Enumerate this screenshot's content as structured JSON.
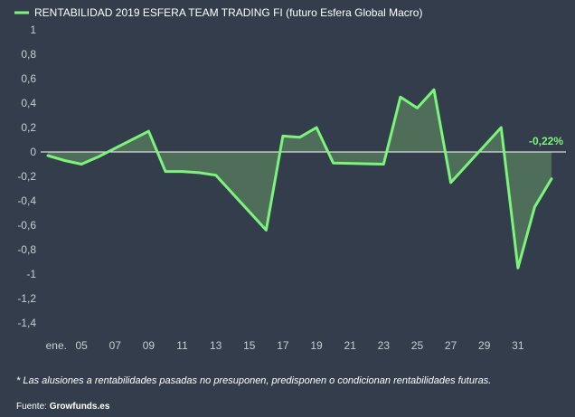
{
  "colors": {
    "background": "#333d4b",
    "line": "#7cf47c",
    "area": "#4e6e5a",
    "zero_line": "#ffffff",
    "tick_text": "#c9cdd3"
  },
  "chart_data": {
    "type": "area",
    "legend": "RENTABILIDAD 2019 ESFERA TEAM TRADING FI (futuro Esfera Global Macro)",
    "legend_position": "top-left",
    "x_tick_labels": [
      "ene.",
      "05",
      "07",
      "09",
      "11",
      "13",
      "15",
      "17",
      "19",
      "21",
      "23",
      "25",
      "27",
      "29",
      "31"
    ],
    "x": [
      "01",
      "02",
      "03",
      "04",
      "07",
      "08",
      "09",
      "10",
      "11",
      "14",
      "15",
      "16",
      "17",
      "18",
      "21",
      "22",
      "23",
      "24",
      "25",
      "28",
      "29",
      "30",
      "31"
    ],
    "x_day": [
      1,
      2,
      3,
      4,
      7,
      8,
      9,
      10,
      11,
      14,
      15,
      16,
      17,
      18,
      21,
      22,
      23,
      24,
      25,
      28,
      29,
      30,
      31
    ],
    "values": [
      -0.03,
      -0.07,
      -0.1,
      -0.04,
      0.17,
      -0.16,
      -0.16,
      -0.17,
      -0.19,
      -0.64,
      0.13,
      0.12,
      0.2,
      -0.09,
      -0.1,
      0.45,
      0.36,
      0.51,
      -0.25,
      0.2,
      -0.95,
      -0.45,
      -0.22
    ],
    "last_value_label": "-0,22%",
    "y_ticks": [
      "1",
      "0,8",
      "0,6",
      "0,4",
      "0,2",
      "0",
      "-0,2",
      "-0,4",
      "-0,6",
      "-0,8",
      "-1",
      "-1,2",
      "-1,4"
    ],
    "ylim": [
      -1.4,
      1
    ],
    "grid": false
  },
  "footer": {
    "disclaimer": "* Las alusiones a rentabilidades pasadas no presuponen, predisponen o condicionan rentabilidades futuras.",
    "source_prefix": "Fuente: ",
    "source_name": "Growfunds.es"
  }
}
